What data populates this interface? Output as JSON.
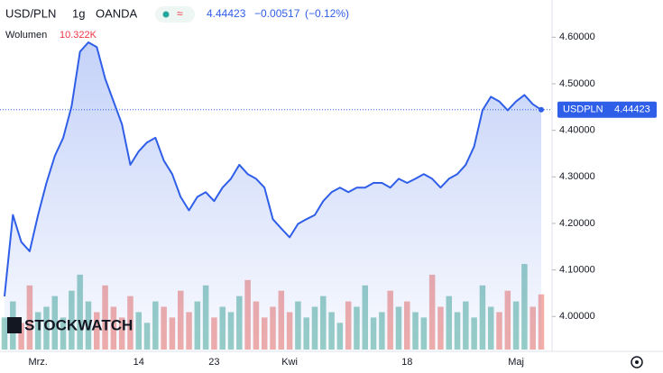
{
  "chart_data": {
    "type": "area",
    "symbol": "USD/PLN",
    "interval": "1g",
    "source": "OANDA",
    "change": "−0.00517",
    "change_pct": "(−0.12%)",
    "volume_title": "Wolumen",
    "price_label": "USDPLN",
    "watermark": "STOCKWATCH",
    "categories": [
      null,
      null,
      null,
      null,
      "Mrz.",
      null,
      null,
      null,
      null,
      null,
      null,
      null,
      null,
      null,
      null,
      null,
      "14",
      null,
      null,
      null,
      null,
      null,
      null,
      null,
      null,
      "23",
      null,
      null,
      null,
      null,
      null,
      null,
      null,
      null,
      "Kwi",
      null,
      null,
      null,
      null,
      null,
      null,
      null,
      null,
      null,
      null,
      null,
      null,
      null,
      "18",
      null,
      null,
      null,
      null,
      null,
      null,
      null,
      null,
      null,
      null,
      null,
      null,
      "Maj",
      null,
      null,
      null
    ],
    "series": [
      {
        "name": "USDPLN",
        "color": "#2f5fe8",
        "values": [
          4.043,
          4.218,
          4.16,
          4.14,
          4.218,
          4.287,
          4.345,
          4.384,
          4.452,
          4.569,
          4.589,
          4.579,
          4.511,
          4.462,
          4.413,
          4.326,
          4.355,
          4.374,
          4.384,
          4.335,
          4.306,
          4.257,
          4.228,
          4.257,
          4.267,
          4.248,
          4.277,
          4.296,
          4.326,
          4.306,
          4.296,
          4.277,
          4.209,
          4.189,
          4.17,
          4.199,
          4.209,
          4.218,
          4.248,
          4.267,
          4.277,
          4.267,
          4.277,
          4.277,
          4.287,
          4.287,
          4.277,
          4.296,
          4.287,
          4.296,
          4.306,
          4.296,
          4.277,
          4.296,
          4.306,
          4.326,
          4.365,
          4.443,
          4.472,
          4.462,
          4.443,
          4.462,
          4.476,
          4.456,
          4.44423
        ]
      },
      {
        "name": "Wolumen",
        "up_color": "#7fc3b8",
        "down_color": "#f09a94",
        "values": [
          6,
          9,
          5,
          12,
          7,
          8,
          10,
          6,
          11,
          14,
          9,
          7,
          12,
          8,
          6,
          10,
          7,
          5,
          9,
          8,
          6,
          11,
          7,
          9,
          12,
          6,
          8,
          7,
          10,
          13,
          9,
          6,
          8,
          11,
          7,
          9,
          6,
          8,
          10,
          7,
          5,
          9,
          8,
          12,
          6,
          7,
          11,
          8,
          9,
          7,
          6,
          14,
          8,
          10,
          7,
          9,
          6,
          12,
          8,
          7,
          11,
          9,
          16,
          8,
          10.322
        ],
        "value_labels": [
          null,
          null,
          null,
          null,
          null,
          null,
          null,
          null,
          null,
          null,
          null,
          null,
          null,
          null,
          null,
          null,
          null,
          null,
          null,
          null,
          null,
          null,
          null,
          null,
          null,
          null,
          null,
          null,
          null,
          null,
          null,
          null,
          null,
          null,
          null,
          null,
          null,
          null,
          null,
          null,
          null,
          null,
          null,
          null,
          null,
          null,
          null,
          null,
          null,
          null,
          null,
          null,
          null,
          null,
          null,
          null,
          null,
          null,
          null,
          null,
          null,
          null,
          null,
          null,
          "10.322K"
        ]
      }
    ],
    "ylim": [
      3.925,
      4.68
    ],
    "yticks": [
      {
        "value": 4.0,
        "label": "4.00000"
      },
      {
        "value": 4.1,
        "label": "4.10000"
      },
      {
        "value": 4.2,
        "label": "4.20000"
      },
      {
        "value": 4.3,
        "label": "4.30000"
      },
      {
        "value": 4.4,
        "label": "4.40000"
      },
      {
        "value": 4.5,
        "label": "4.50000"
      },
      {
        "value": 4.6,
        "label": "4.60000"
      }
    ]
  }
}
